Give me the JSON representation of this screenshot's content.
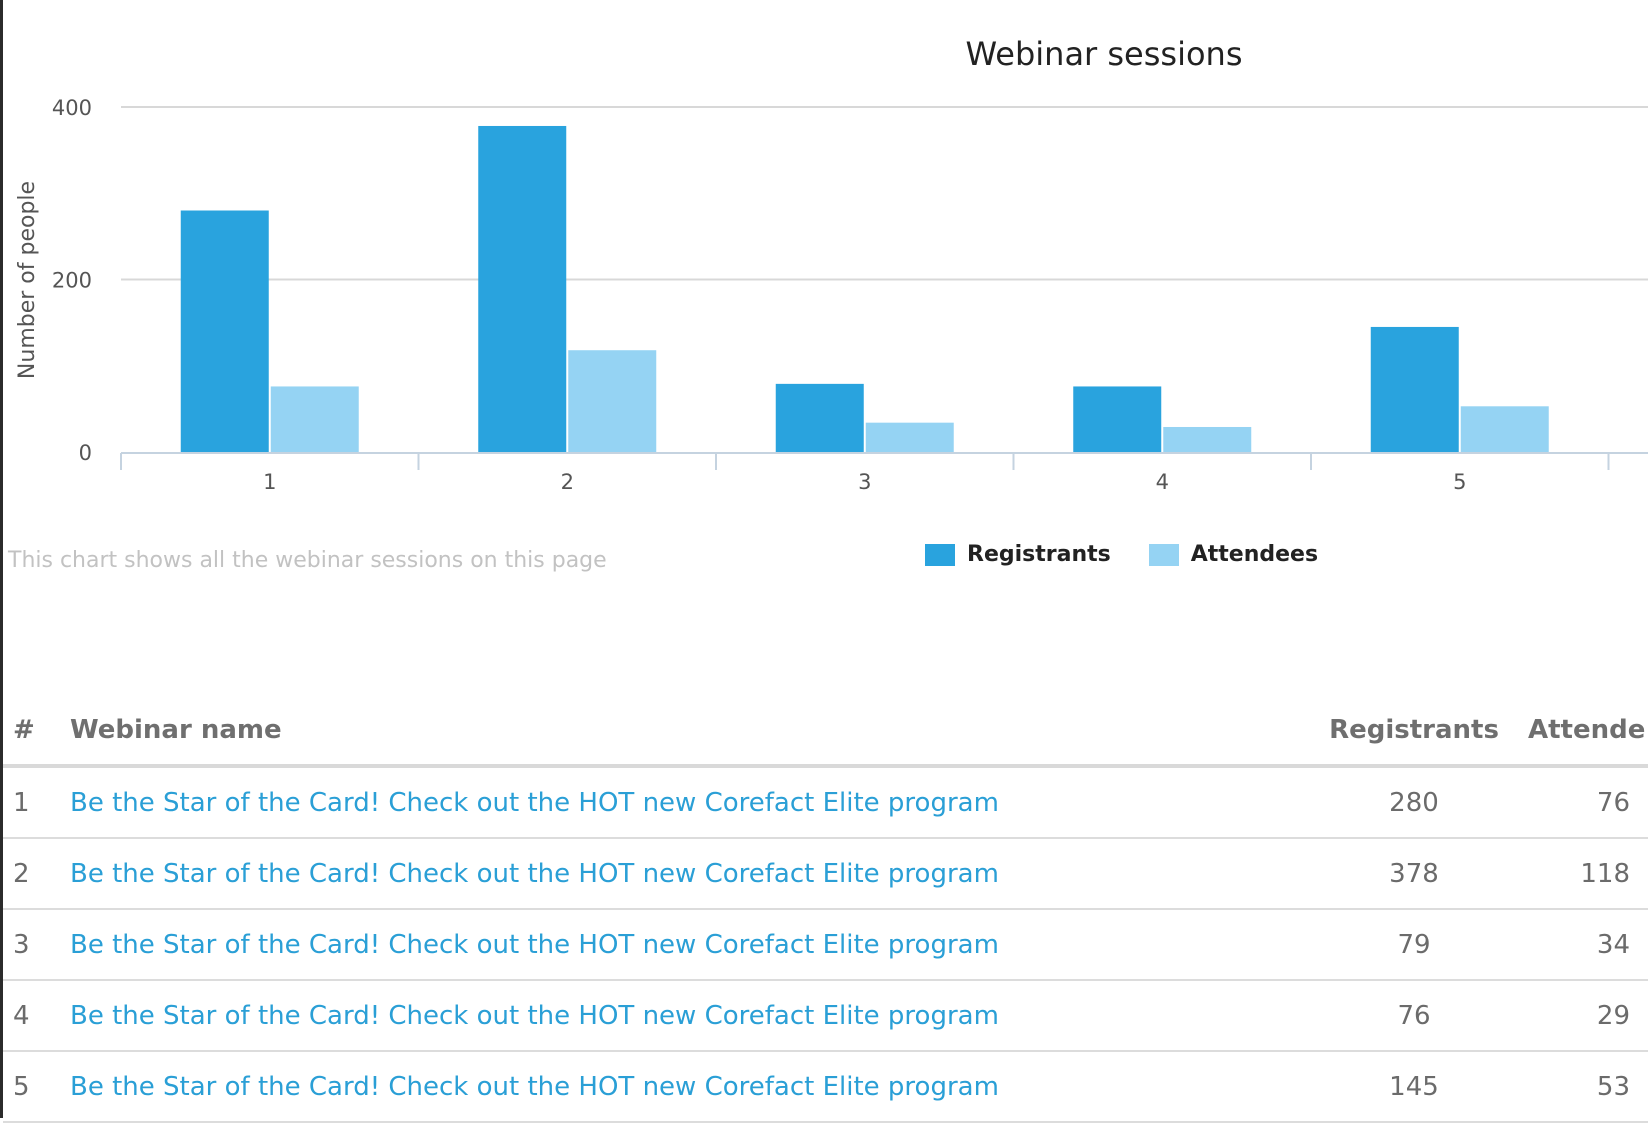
{
  "chart_data": {
    "type": "bar",
    "title": "Webinar sessions",
    "ylabel": "Number of people",
    "xlabel": "",
    "categories": [
      "1",
      "2",
      "3",
      "4",
      "5"
    ],
    "series": [
      {
        "name": "Registrants",
        "color": "#29a3de",
        "values": [
          280,
          378,
          79,
          76,
          145
        ]
      },
      {
        "name": "Attendees",
        "color": "#95d3f3",
        "values": [
          76,
          118,
          34,
          29,
          53
        ]
      }
    ],
    "ylim": [
      0,
      400
    ],
    "yticks": [
      "0",
      "200",
      "400"
    ],
    "grid": true,
    "legend_position": "bottom-center"
  },
  "chart_caption": "This chart shows all the webinar sessions on this page",
  "table": {
    "headers": {
      "num": "#",
      "name": "Webinar name",
      "registrants": "Registrants",
      "attendees": "Attende"
    },
    "rows": [
      {
        "num": "1",
        "name": "Be the Star of the Card! Check out the HOT new Corefact Elite program",
        "registrants": "280",
        "attendees": "76"
      },
      {
        "num": "2",
        "name": "Be the Star of the Card! Check out the HOT new Corefact Elite program",
        "registrants": "378",
        "attendees": "118"
      },
      {
        "num": "3",
        "name": "Be the Star of the Card! Check out the HOT new Corefact Elite program",
        "registrants": "79",
        "attendees": "34"
      },
      {
        "num": "4",
        "name": "Be the Star of the Card! Check out the HOT new Corefact Elite program",
        "registrants": "76",
        "attendees": "29"
      },
      {
        "num": "5",
        "name": "Be the Star of the Card! Check out the HOT new Corefact Elite program",
        "registrants": "145",
        "attendees": "53"
      }
    ]
  }
}
